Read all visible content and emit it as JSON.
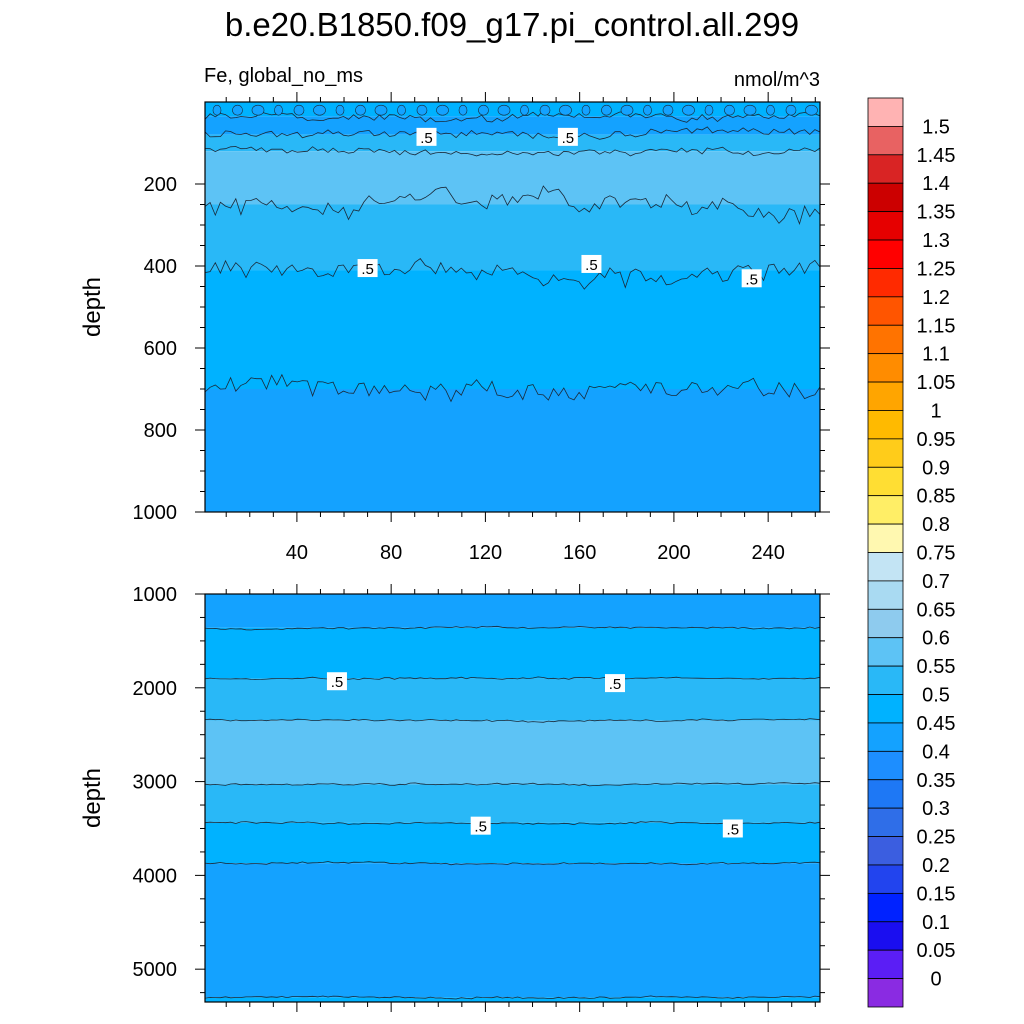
{
  "title": "b.e20.B1850.f09_g17.pi_control.all.299",
  "chart_data": [
    {
      "type": "contour",
      "panel": "upper",
      "left_label": "Fe, global_no_ms",
      "right_label": "nmol/m^3",
      "ylabel": "depth",
      "xlim": [
        1,
        262
      ],
      "ylim": [
        1000,
        0
      ],
      "x_ticks": [
        40,
        80,
        120,
        160,
        200,
        240
      ],
      "y_ticks": [
        200,
        400,
        600,
        800,
        1000
      ],
      "contour_label": ".5",
      "bands": [
        {
          "depth_top": 0,
          "depth_bottom": 35,
          "value": 0.47
        },
        {
          "depth_top": 35,
          "depth_bottom": 80,
          "value": 0.42
        },
        {
          "depth_top": 80,
          "depth_bottom": 120,
          "value": 0.52
        },
        {
          "depth_top": 120,
          "depth_bottom": 250,
          "value": 0.57
        },
        {
          "depth_top": 250,
          "depth_bottom": 410,
          "value": 0.52
        },
        {
          "depth_top": 410,
          "depth_bottom": 700,
          "value": 0.47
        },
        {
          "depth_top": 700,
          "depth_bottom": 1000,
          "value": 0.42
        }
      ],
      "contour_depths": [
        35,
        80,
        120,
        250,
        410,
        700
      ],
      "label_positions": [
        {
          "x": 95,
          "depth": 85
        },
        {
          "x": 155,
          "depth": 85
        },
        {
          "x": 70,
          "depth": 405
        },
        {
          "x": 165,
          "depth": 395
        },
        {
          "x": 233,
          "depth": 430
        }
      ]
    },
    {
      "type": "contour",
      "panel": "lower",
      "ylabel": "depth",
      "xlim": [
        1,
        262
      ],
      "ylim": [
        5350,
        1000
      ],
      "y_ticks": [
        1000,
        2000,
        3000,
        4000,
        5000
      ],
      "contour_label": ".5",
      "bands": [
        {
          "depth_top": 1000,
          "depth_bottom": 1360,
          "value": 0.42
        },
        {
          "depth_top": 1360,
          "depth_bottom": 1900,
          "value": 0.47
        },
        {
          "depth_top": 1900,
          "depth_bottom": 2350,
          "value": 0.52
        },
        {
          "depth_top": 2350,
          "depth_bottom": 3030,
          "value": 0.57
        },
        {
          "depth_top": 3030,
          "depth_bottom": 3440,
          "value": 0.52
        },
        {
          "depth_top": 3440,
          "depth_bottom": 3870,
          "value": 0.47
        },
        {
          "depth_top": 3870,
          "depth_bottom": 5300,
          "value": 0.42
        },
        {
          "depth_top": 5300,
          "depth_bottom": 5350,
          "value": 0.47
        }
      ],
      "contour_depths": [
        1360,
        1900,
        2350,
        3030,
        3440,
        3870,
        5300
      ],
      "label_positions": [
        {
          "x": 57,
          "depth": 1930
        },
        {
          "x": 175,
          "depth": 1950
        },
        {
          "x": 118,
          "depth": 3470
        },
        {
          "x": 225,
          "depth": 3500
        }
      ]
    }
  ],
  "colorbar": {
    "labels": [
      "1.5",
      "1.45",
      "1.4",
      "1.35",
      "1.3",
      "1.25",
      "1.2",
      "1.15",
      "1.1",
      "1.05",
      "1",
      "0.95",
      "0.9",
      "0.85",
      "0.8",
      "0.75",
      "0.7",
      "0.65",
      "0.6",
      "0.55",
      "0.5",
      "0.45",
      "0.4",
      "0.35",
      "0.3",
      "0.25",
      "0.2",
      "0.15",
      "0.1",
      "0.05",
      "0"
    ],
    "colors_top_to_bottom": [
      "#ffb3b3",
      "#e86262",
      "#d92424",
      "#cc0000",
      "#e60000",
      "#ff0000",
      "#ff2a00",
      "#ff5500",
      "#ff7300",
      "#ff8c00",
      "#ffa500",
      "#ffba00",
      "#ffcc1a",
      "#ffde33",
      "#ffee66",
      "#fff8b0",
      "#c3e4f4",
      "#a9daf2",
      "#8ecbee",
      "#5dc3f5",
      "#29b8f7",
      "#00b2ff",
      "#14a2ff",
      "#1d8eff",
      "#1e78f5",
      "#2f6ee8",
      "#3b5ee0",
      "#2244ee",
      "#0022ff",
      "#1a0ef0",
      "#5b1ef5",
      "#8a2be2"
    ]
  }
}
